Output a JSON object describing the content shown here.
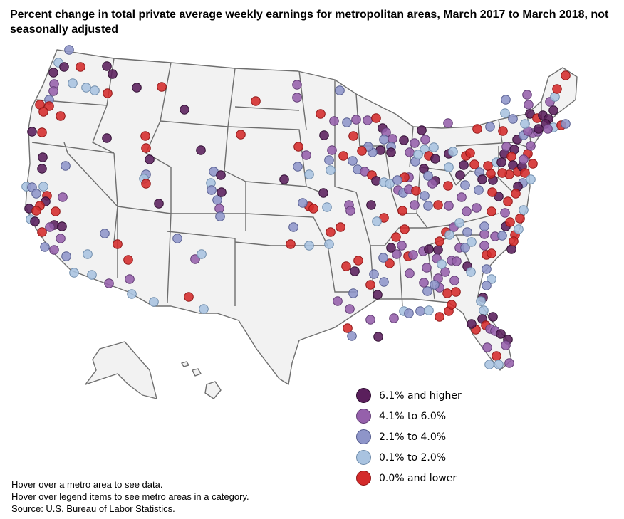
{
  "title": "Percent change in total private average weekly earnings for metropolitan areas, March 2017 to March 2018, not seasonally adjusted",
  "legend": [
    {
      "key": "c5",
      "label": "6.1% and higher",
      "color": "#5a1f5c",
      "stroke": "#2e0d30"
    },
    {
      "key": "c4",
      "label": "4.1% to 6.0%",
      "color": "#9560ab",
      "stroke": "#5f3a72"
    },
    {
      "key": "c3",
      "label": "2.1% to 4.0%",
      "color": "#8e95c9",
      "stroke": "#555c8e"
    },
    {
      "key": "c2",
      "label": "0.1% to 2.0%",
      "color": "#a9c3e0",
      "stroke": "#6f8cab"
    },
    {
      "key": "c1",
      "label": "0.0% and lower",
      "color": "#d42a2a",
      "stroke": "#8f1515"
    }
  ],
  "notes": {
    "hover_metro": "Hover over a metro area to see data.",
    "hover_legend": "Hover over legend items to see metro areas in a category.",
    "source": "Source: U.S. Bureau of Labor Statistics."
  },
  "chart_data": {
    "type": "scatter",
    "categories": [
      "6.1% and higher",
      "4.1% to 6.0%",
      "2.1% to 4.0%",
      "0.1% to 2.0%",
      "0.0% and lower"
    ]
  }
}
